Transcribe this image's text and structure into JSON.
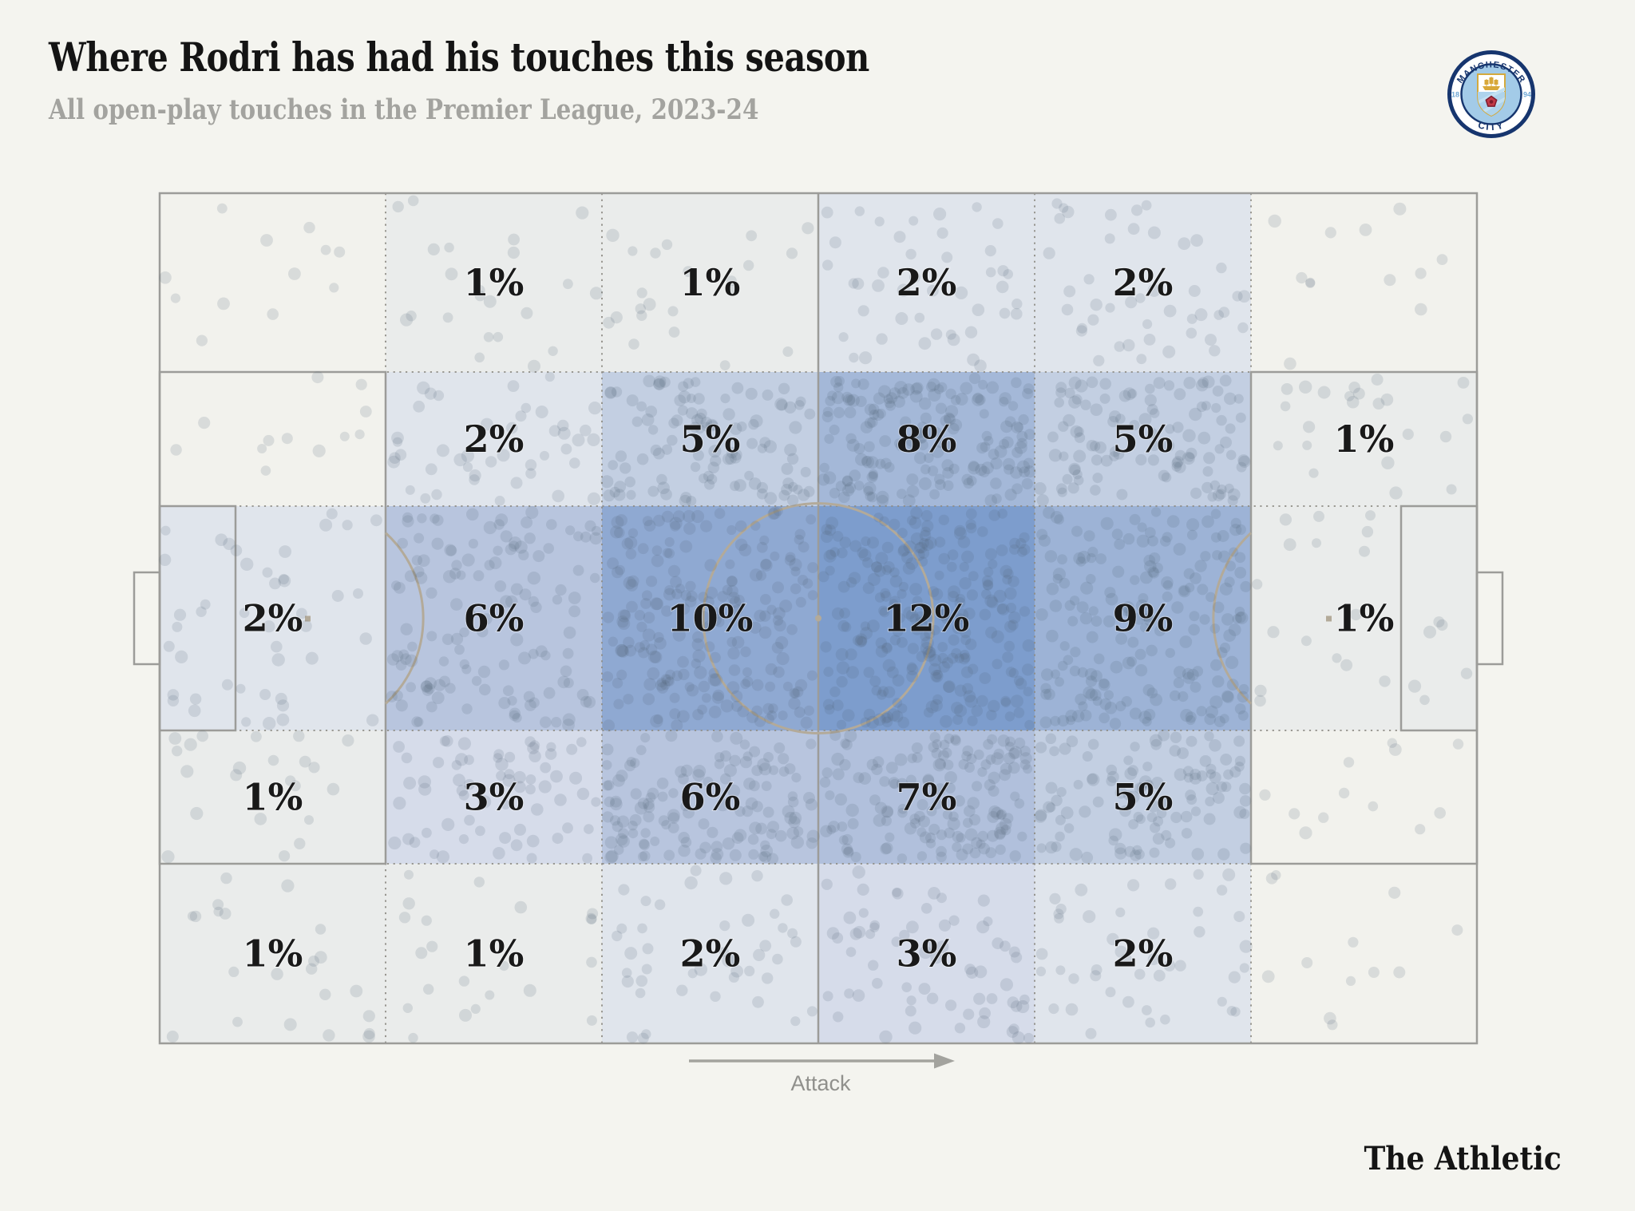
{
  "header": {
    "title": "Where Rodri has had his touches this season",
    "subtitle": "All open-play touches in the Premier League, 2023-24"
  },
  "badge": {
    "top_text": "MANCHESTER",
    "bottom_text": "CITY",
    "left_text": "18",
    "right_text": "94"
  },
  "pitch": {
    "attack_label": "Attack"
  },
  "footer": {
    "brand": "The Athletic"
  },
  "colors": {
    "page_bg": "#f4f4ef",
    "pitch_bg": "#f2f2ed",
    "pitch_line": "#9c9c99",
    "pitch_arc": "#b3aa99",
    "grid_dotted_line": "#8f8d86",
    "zone_label_text": "#191919",
    "touch_dot": "rgba(82,98,120,0.16)",
    "zone_scale": {
      "0": "#f2f2ed",
      "1": "#eaeceb",
      "2": "#e0e5ec",
      "3": "#d6dcea",
      "5": "#c3cfe2",
      "6": "#b8c5de",
      "7": "#b1c0dc",
      "8": "#a4b8d8",
      "9": "#9db3d6",
      "10": "#8fa9d2",
      "12": "#7d9dcd"
    }
  },
  "chart_data": {
    "type": "heatmap",
    "title": "Where Rodri has had his touches this season",
    "subtitle": "All open-play touches in the Premier League, 2023-24",
    "unit": "percent of open-play touches per pitch zone",
    "grid": {
      "rows": 5,
      "cols": 6
    },
    "attack_direction": "left-to-right",
    "values_pct": [
      [
        null,
        1,
        1,
        2,
        2,
        null
      ],
      [
        null,
        2,
        5,
        8,
        5,
        1
      ],
      [
        2,
        6,
        10,
        12,
        9,
        1
      ],
      [
        1,
        3,
        6,
        7,
        5,
        null
      ],
      [
        1,
        1,
        2,
        3,
        2,
        null
      ]
    ],
    "overlay": "scatter of individual touch locations",
    "legend_position": "none"
  }
}
